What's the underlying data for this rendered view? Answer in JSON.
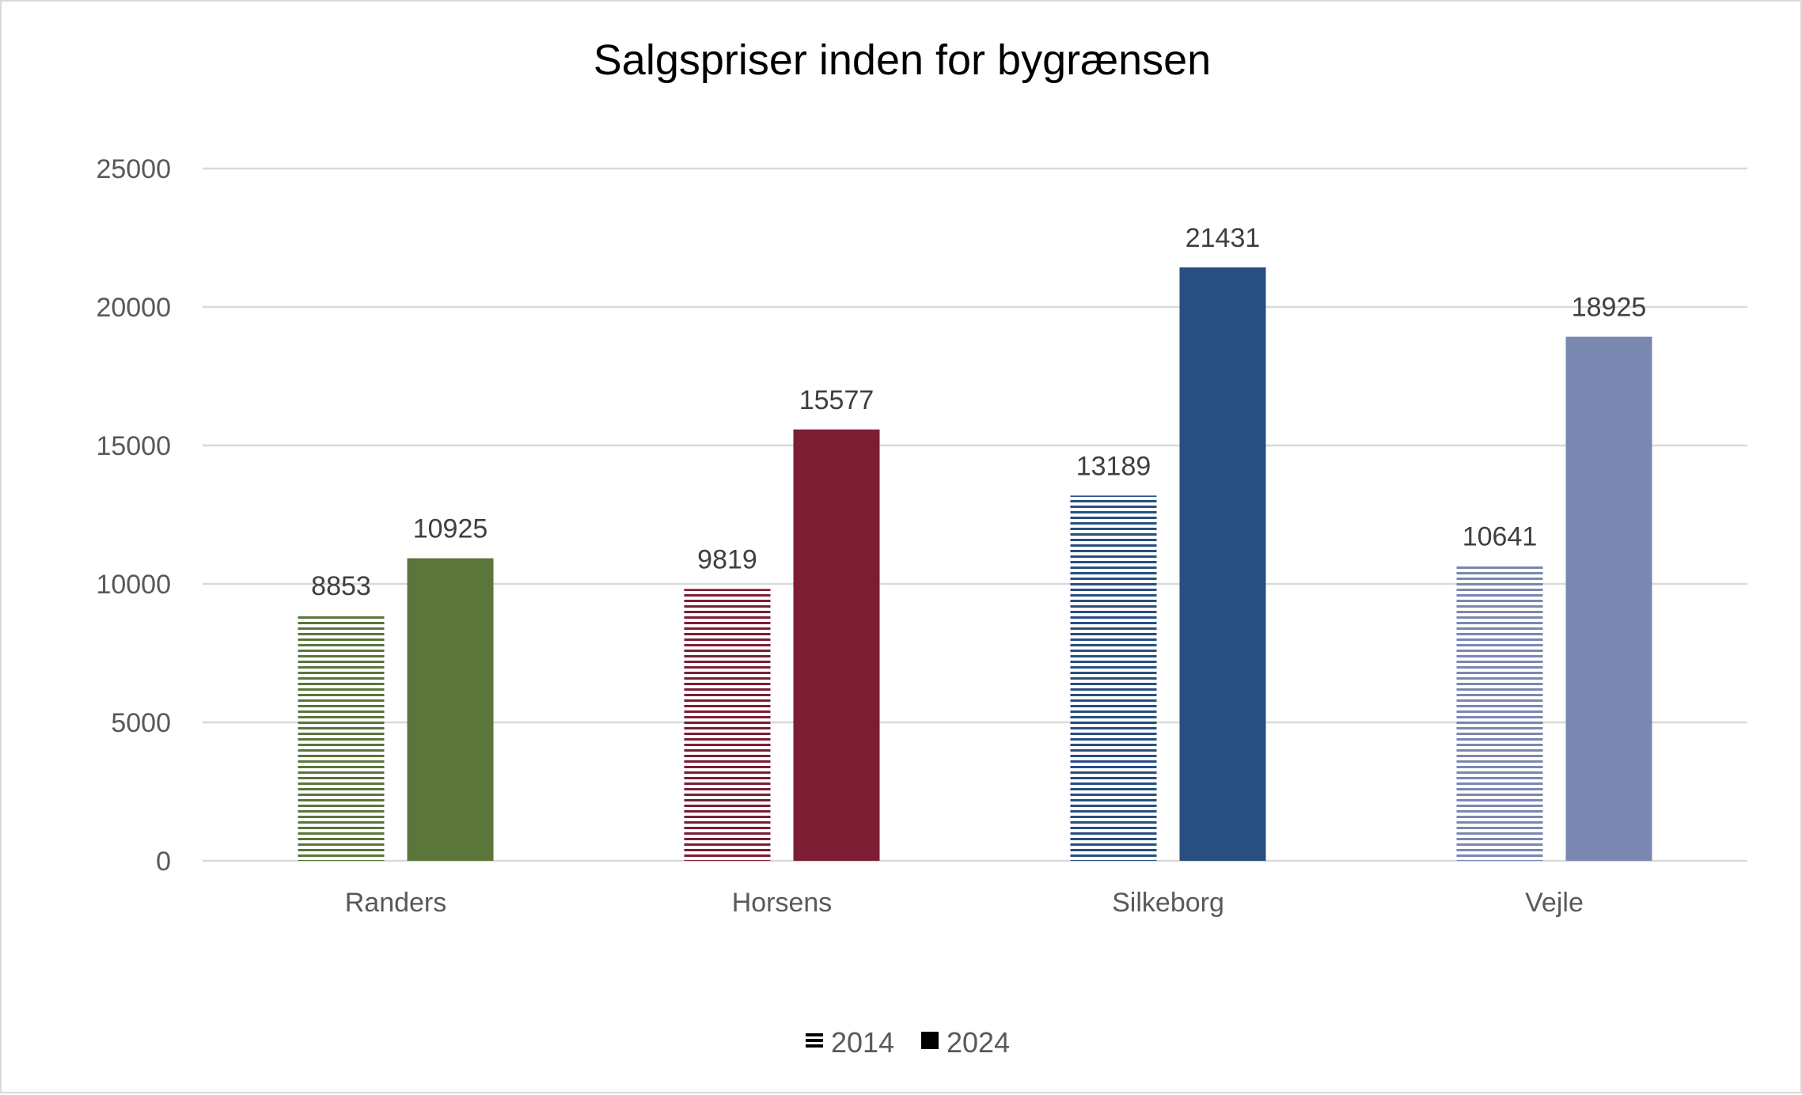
{
  "chart_data": {
    "type": "bar",
    "title": "Salgspriser inden for bygrænsen",
    "xlabel": "",
    "ylabel": "",
    "categories": [
      "Randers",
      "Horsens",
      "Silkeborg",
      "Vejle"
    ],
    "category_colors": [
      "#5B753A",
      "#7B1E33",
      "#294E80",
      "#7A87B0"
    ],
    "series": [
      {
        "name": "2014",
        "pattern": "horizontal-stripes",
        "values": [
          8853,
          9819,
          13189,
          10641
        ]
      },
      {
        "name": "2024",
        "pattern": "solid",
        "values": [
          10925,
          15577,
          21431,
          18925
        ]
      }
    ],
    "ylim": [
      0,
      25000
    ],
    "yticks": [
      "0",
      "5000",
      "10000",
      "15000",
      "20000",
      "25000"
    ],
    "grid": true,
    "data_labels": true,
    "legend_position": "bottom"
  }
}
